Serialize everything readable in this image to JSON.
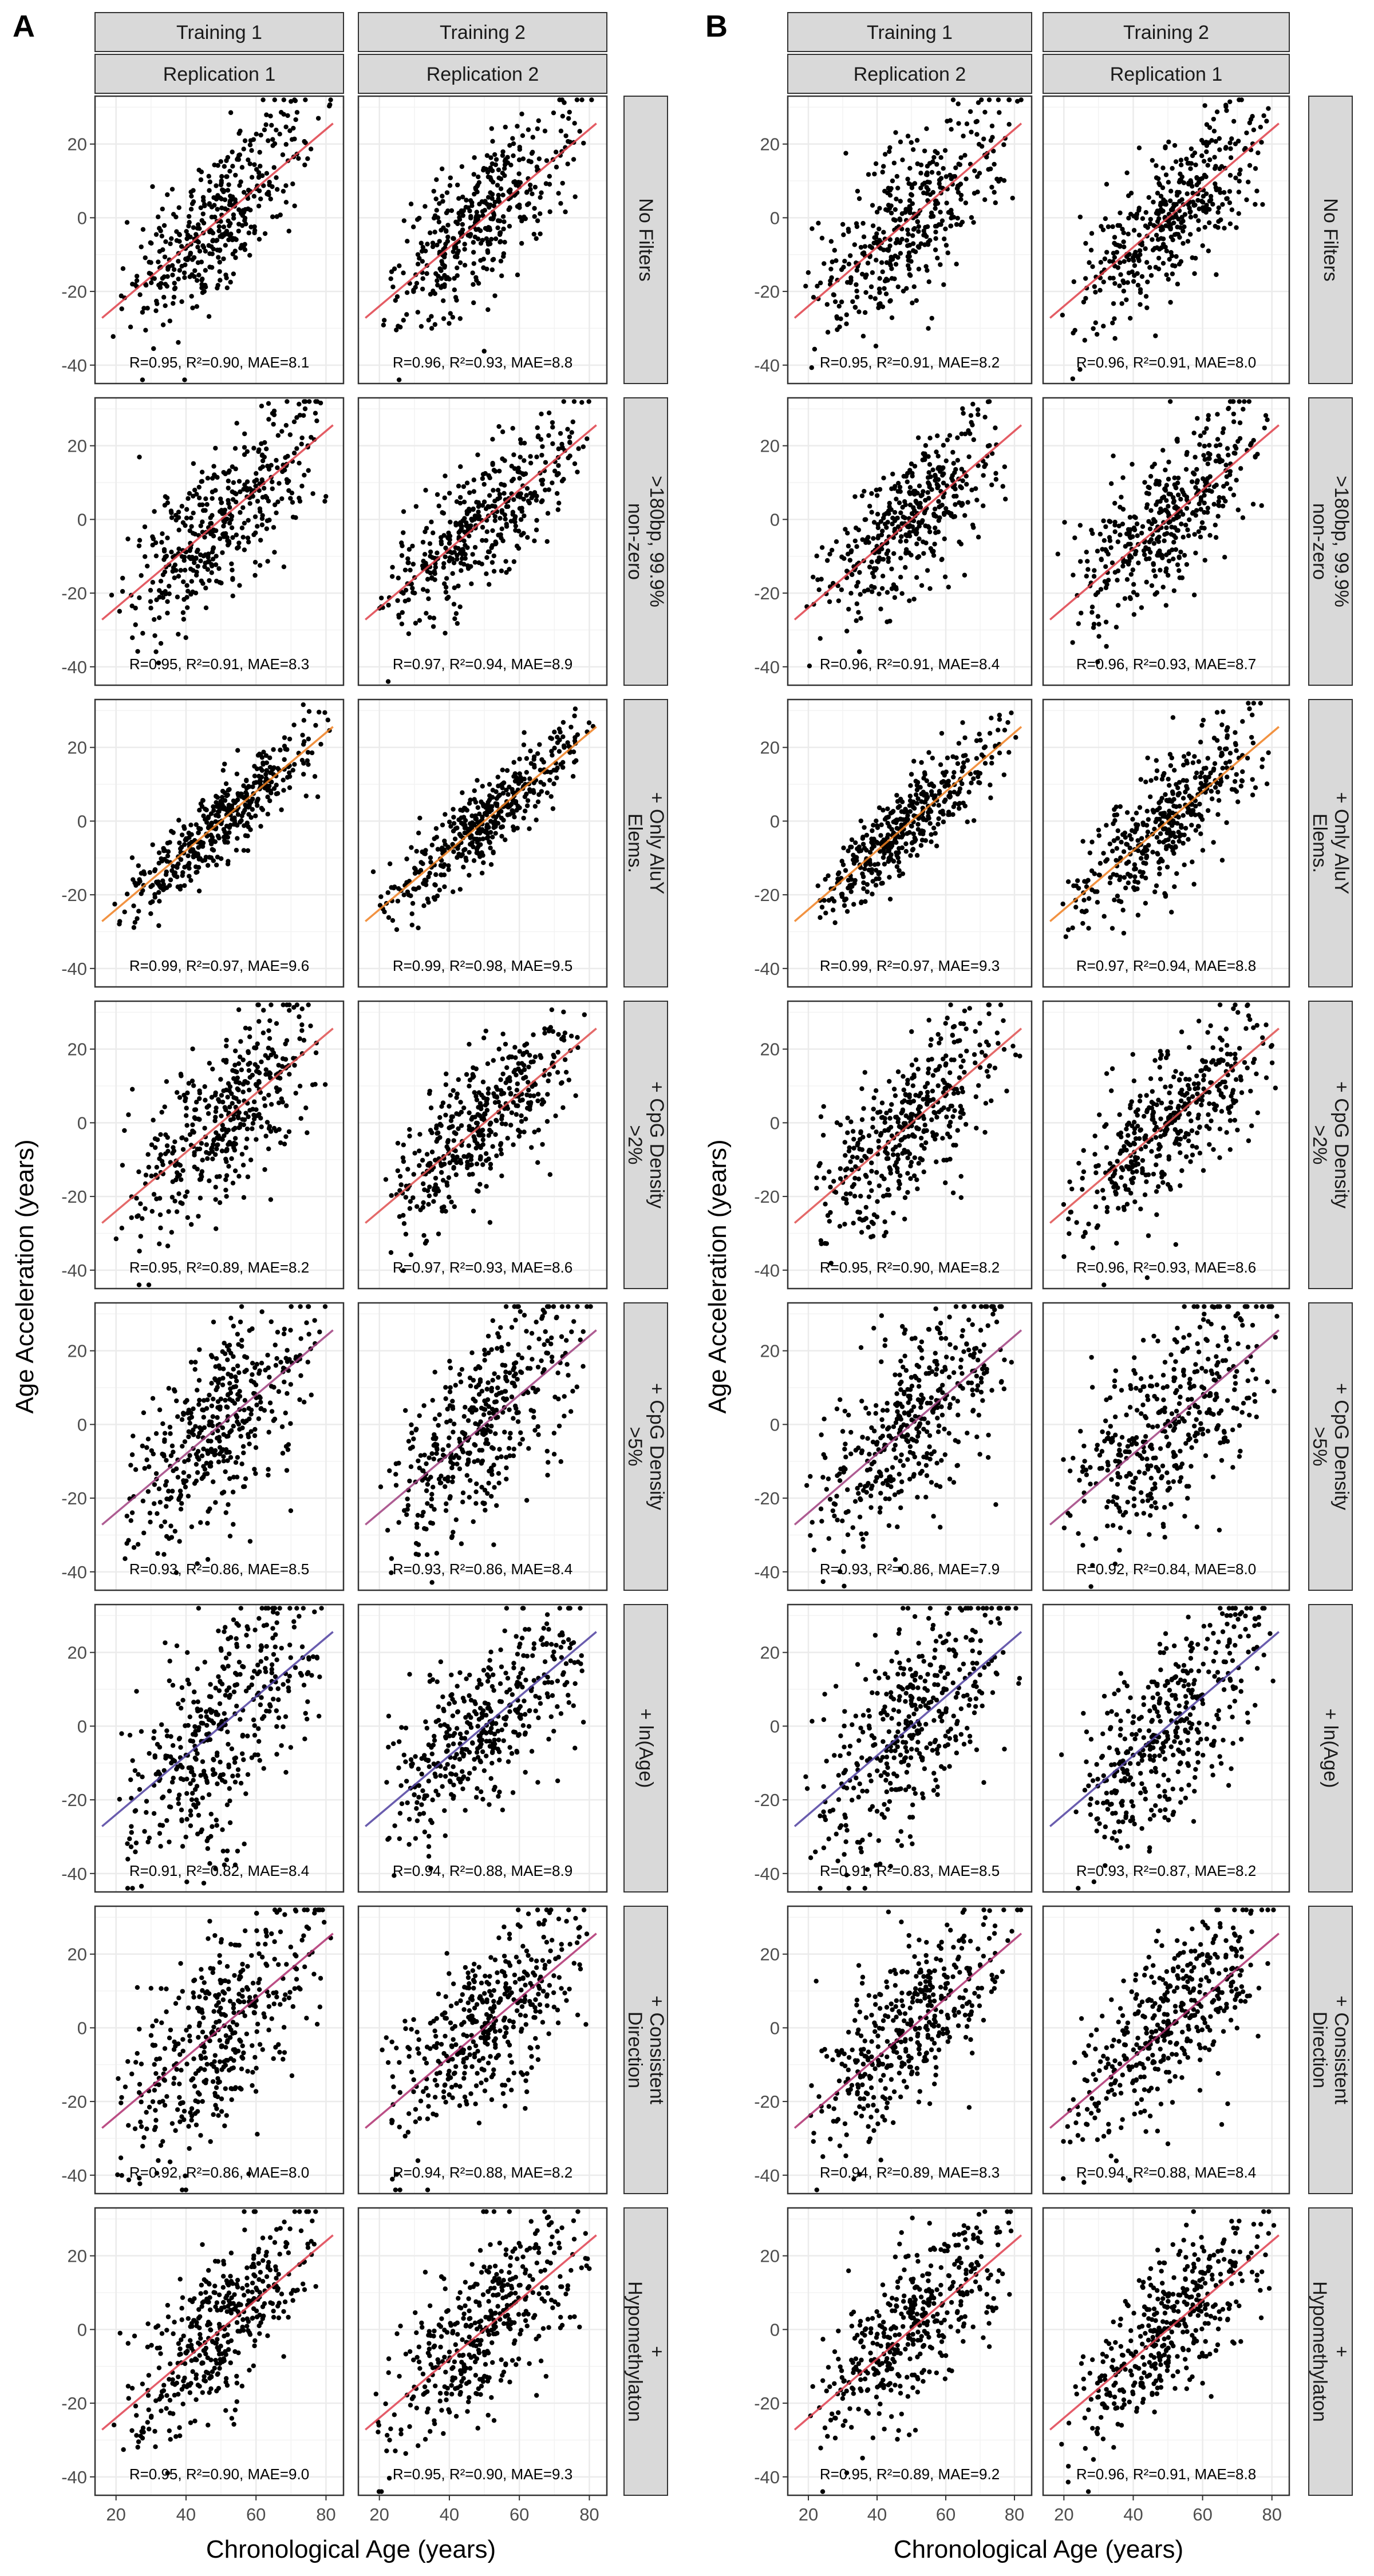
{
  "figure": {
    "panel_labels": [
      "A",
      "B"
    ],
    "x_axis_title": "Chronological Age (years)",
    "y_axis_title": "Age Acceleration (years)",
    "colors": {
      "points": "#000000",
      "strip_fill": "#d9d9d9",
      "panel_border": "#333333",
      "grid": "#ebebeb"
    }
  },
  "chart_data": [
    {
      "type": "scatter",
      "panel": "A",
      "xlabel": "Chronological Age (years)",
      "ylabel": "Age Acceleration (years)",
      "xlim": [
        14,
        85
      ],
      "ylim": [
        -45,
        33
      ],
      "x_ticks": [
        20,
        40,
        60,
        80
      ],
      "y_ticks": [
        -40,
        -20,
        0,
        20
      ],
      "grid": true,
      "columns": [
        {
          "training": "Training 1",
          "replication": "Replication 1"
        },
        {
          "training": "Training 2",
          "replication": "Replication 2"
        }
      ],
      "rows": [
        {
          "label": [
            "No Filters"
          ],
          "line_color": "#e0404a",
          "cells": [
            {
              "R": 0.95,
              "R2": 0.9,
              "MAE": 8.1,
              "stat": "R=0.95, R²=0.90, MAE=8.1"
            },
            {
              "R": 0.96,
              "R2": 0.93,
              "MAE": 8.8,
              "stat": "R=0.96, R²=0.93, MAE=8.8"
            }
          ]
        },
        {
          "label": [
            ">180bp, 99.9%",
            "non-zero"
          ],
          "line_color": "#e0404a",
          "cells": [
            {
              "R": 0.95,
              "R2": 0.91,
              "MAE": 8.3,
              "stat": "R=0.95, R²=0.91, MAE=8.3"
            },
            {
              "R": 0.97,
              "R2": 0.94,
              "MAE": 8.9,
              "stat": "R=0.97, R²=0.94, MAE=8.9"
            }
          ]
        },
        {
          "label": [
            "+ Only AluY",
            "Elems."
          ],
          "line_color": "#f08020",
          "cells": [
            {
              "R": 0.99,
              "R2": 0.97,
              "MAE": 9.6,
              "stat": "R=0.99, R²=0.97, MAE=9.6"
            },
            {
              "R": 0.99,
              "R2": 0.98,
              "MAE": 9.5,
              "stat": "R=0.99, R²=0.98, MAE=9.5"
            }
          ]
        },
        {
          "label": [
            "+ CpG Density",
            ">2%"
          ],
          "line_color": "#e05050",
          "cells": [
            {
              "R": 0.95,
              "R2": 0.89,
              "MAE": 8.2,
              "stat": "R=0.95, R²=0.89, MAE=8.2"
            },
            {
              "R": 0.97,
              "R2": 0.93,
              "MAE": 8.6,
              "stat": "R=0.97, R²=0.93, MAE=8.6"
            }
          ]
        },
        {
          "label": [
            "+ CpG Density",
            ">5%"
          ],
          "line_color": "#a04080",
          "cells": [
            {
              "R": 0.93,
              "R2": 0.86,
              "MAE": 8.5,
              "stat": "R=0.93, R²=0.86, MAE=8.5"
            },
            {
              "R": 0.93,
              "R2": 0.86,
              "MAE": 8.4,
              "stat": "R=0.93, R²=0.86, MAE=8.4"
            }
          ]
        },
        {
          "label": [
            "+ ln(Age)"
          ],
          "line_color": "#5040a0",
          "cells": [
            {
              "R": 0.91,
              "R2": 0.82,
              "MAE": 8.4,
              "stat": "R=0.91, R²=0.82, MAE=8.4"
            },
            {
              "R": 0.94,
              "R2": 0.88,
              "MAE": 8.9,
              "stat": "R=0.94, R²=0.88, MAE=8.9"
            }
          ]
        },
        {
          "label": [
            "+ Consistent",
            "Direction"
          ],
          "line_color": "#b03070",
          "cells": [
            {
              "R": 0.92,
              "R2": 0.86,
              "MAE": 8.0,
              "stat": "R=0.92, R²=0.86, MAE=8.0"
            },
            {
              "R": 0.94,
              "R2": 0.88,
              "MAE": 8.2,
              "stat": "R=0.94, R²=0.88, MAE=8.2"
            }
          ]
        },
        {
          "label": [
            "+",
            "Hypomethylaton"
          ],
          "line_color": "#e04050",
          "cells": [
            {
              "R": 0.95,
              "R2": 0.9,
              "MAE": 9.0,
              "stat": "R=0.95, R²=0.90, MAE=9.0"
            },
            {
              "R": 0.95,
              "R2": 0.9,
              "MAE": 9.3,
              "stat": "R=0.95, R²=0.90, MAE=9.3"
            }
          ]
        }
      ]
    },
    {
      "type": "scatter",
      "panel": "B",
      "xlabel": "Chronological Age (years)",
      "ylabel": "Age Acceleration (years)",
      "xlim": [
        14,
        85
      ],
      "ylim": [
        -45,
        33
      ],
      "x_ticks": [
        20,
        40,
        60,
        80
      ],
      "y_ticks": [
        -40,
        -20,
        0,
        20
      ],
      "grid": true,
      "columns": [
        {
          "training": "Training 1",
          "replication": "Replication 2"
        },
        {
          "training": "Training 2",
          "replication": "Replication 1"
        }
      ],
      "rows": [
        {
          "label": [
            "No Filters"
          ],
          "line_color": "#e0404a",
          "cells": [
            {
              "R": 0.95,
              "R2": 0.91,
              "MAE": 8.2,
              "stat": "R=0.95, R²=0.91, MAE=8.2"
            },
            {
              "R": 0.96,
              "R2": 0.91,
              "MAE": 8.0,
              "stat": "R=0.96, R²=0.91, MAE=8.0"
            }
          ]
        },
        {
          "label": [
            ">180bp, 99.9%",
            "non-zero"
          ],
          "line_color": "#e0404a",
          "cells": [
            {
              "R": 0.96,
              "R2": 0.91,
              "MAE": 8.4,
              "stat": "R=0.96, R²=0.91, MAE=8.4"
            },
            {
              "R": 0.96,
              "R2": 0.93,
              "MAE": 8.7,
              "stat": "R=0.96, R²=0.93, MAE=8.7"
            }
          ]
        },
        {
          "label": [
            "+ Only AluY",
            "Elems."
          ],
          "line_color": "#f08020",
          "cells": [
            {
              "R": 0.99,
              "R2": 0.97,
              "MAE": 9.3,
              "stat": "R=0.99, R²=0.97, MAE=9.3"
            },
            {
              "R": 0.97,
              "R2": 0.94,
              "MAE": 8.8,
              "stat": "R=0.97, R²=0.94, MAE=8.8"
            }
          ]
        },
        {
          "label": [
            "+ CpG Density",
            ">2%"
          ],
          "line_color": "#e05050",
          "cells": [
            {
              "R": 0.95,
              "R2": 0.9,
              "MAE": 8.2,
              "stat": "R=0.95, R²=0.90, MAE=8.2"
            },
            {
              "R": 0.96,
              "R2": 0.93,
              "MAE": 8.6,
              "stat": "R=0.96, R²=0.93, MAE=8.6"
            }
          ]
        },
        {
          "label": [
            "+ CpG Density",
            ">5%"
          ],
          "line_color": "#a04080",
          "cells": [
            {
              "R": 0.93,
              "R2": 0.86,
              "MAE": 7.9,
              "stat": "R=0.93, R²=0.86, MAE=7.9"
            },
            {
              "R": 0.92,
              "R2": 0.84,
              "MAE": 8.0,
              "stat": "R=0.92, R²=0.84, MAE=8.0"
            }
          ]
        },
        {
          "label": [
            "+ ln(Age)"
          ],
          "line_color": "#5040a0",
          "cells": [
            {
              "R": 0.91,
              "R2": 0.83,
              "MAE": 8.5,
              "stat": "R=0.91, R²=0.83, MAE=8.5"
            },
            {
              "R": 0.93,
              "R2": 0.87,
              "MAE": 8.2,
              "stat": "R=0.93, R²=0.87, MAE=8.2"
            }
          ]
        },
        {
          "label": [
            "+ Consistent",
            "Direction"
          ],
          "line_color": "#b03070",
          "cells": [
            {
              "R": 0.94,
              "R2": 0.89,
              "MAE": 8.3,
              "stat": "R=0.94, R²=0.89, MAE=8.3"
            },
            {
              "R": 0.94,
              "R2": 0.88,
              "MAE": 8.4,
              "stat": "R=0.94, R²=0.88, MAE=8.4"
            }
          ]
        },
        {
          "label": [
            "+",
            "Hypomethylaton"
          ],
          "line_color": "#e04050",
          "cells": [
            {
              "R": 0.95,
              "R2": 0.89,
              "MAE": 9.2,
              "stat": "R=0.95, R²=0.89, MAE=9.2"
            },
            {
              "R": 0.96,
              "R2": 0.91,
              "MAE": 8.8,
              "stat": "R=0.96, R²=0.91, MAE=8.8"
            }
          ]
        }
      ]
    }
  ]
}
